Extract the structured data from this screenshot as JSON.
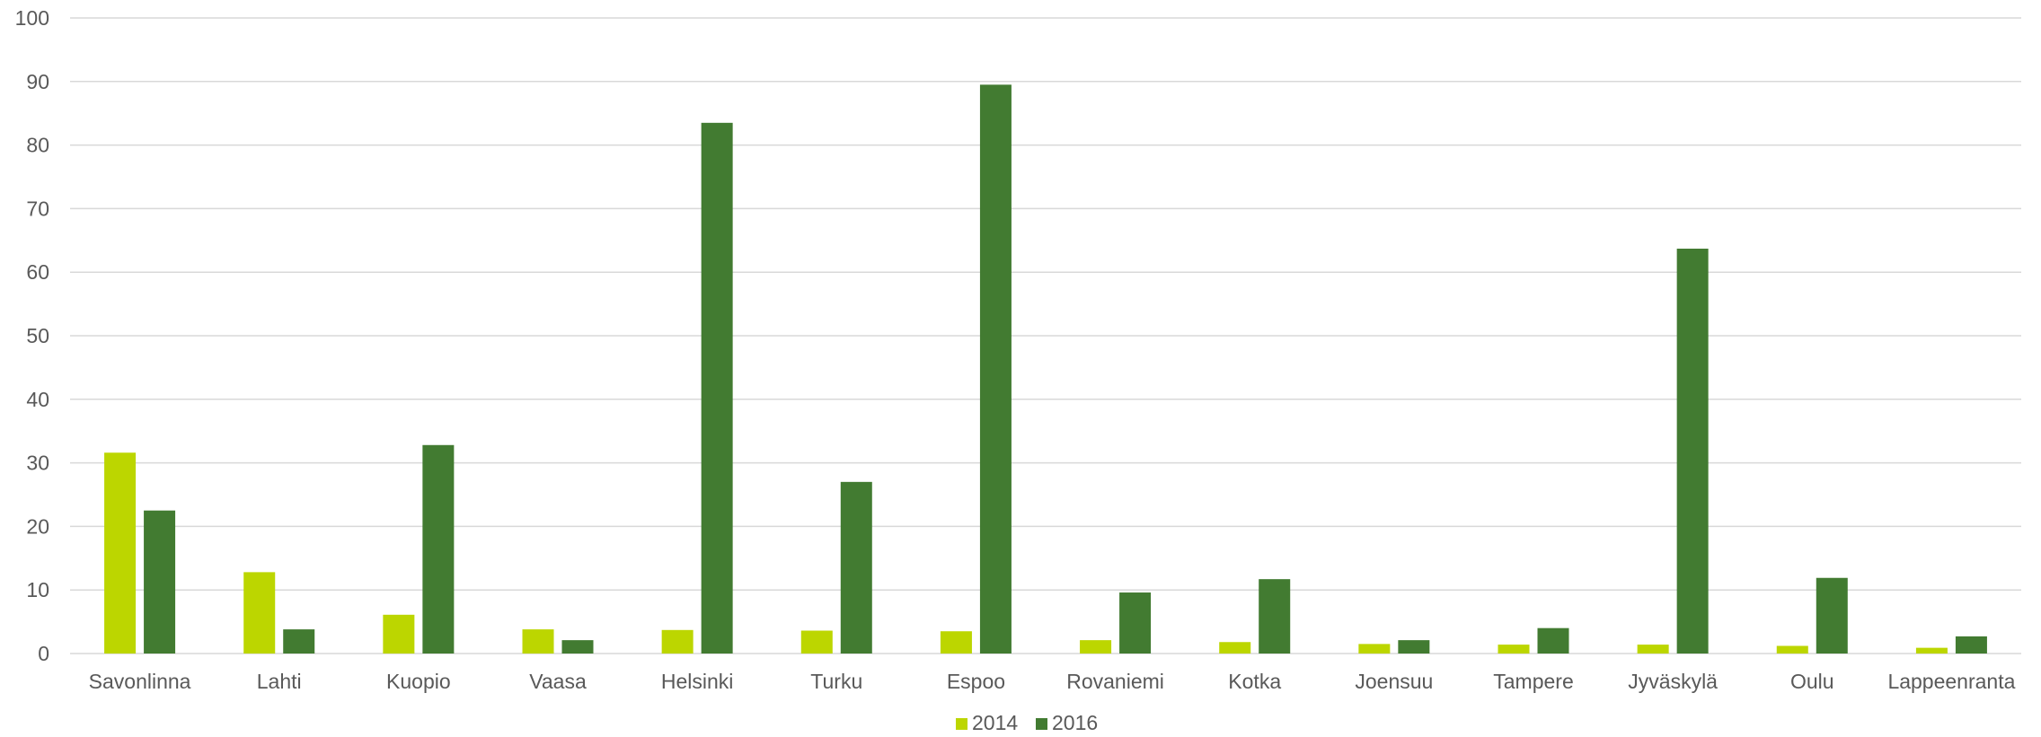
{
  "colors": {
    "series_2014": "#bcd600",
    "series_2016": "#427b31",
    "gridline": "#d9d9d9",
    "text": "#595959"
  },
  "chart_data": {
    "type": "bar",
    "title": "",
    "xlabel": "",
    "ylabel": "",
    "ylim": [
      0,
      100
    ],
    "yticks": [
      "0",
      "10",
      "20",
      "30",
      "40",
      "50",
      "60",
      "70",
      "80",
      "90",
      "100"
    ],
    "grid": true,
    "legend_position": "bottom",
    "categories": [
      "Savonlinna",
      "Lahti",
      "Kuopio",
      "Vaasa",
      "Helsinki",
      "Turku",
      "Espoo",
      "Rovaniemi",
      "Kotka",
      "Joensuu",
      "Tampere",
      "Jyväskylä",
      "Oulu",
      "Lappeenranta"
    ],
    "series": [
      {
        "name": "2014",
        "values": [
          31.6,
          12.8,
          6.1,
          3.8,
          3.7,
          3.6,
          3.5,
          2.1,
          1.8,
          1.5,
          1.4,
          1.4,
          1.2,
          0.9
        ]
      },
      {
        "name": "2016",
        "values": [
          22.5,
          3.8,
          32.8,
          2.1,
          83.5,
          27.0,
          89.5,
          9.6,
          11.7,
          2.1,
          4.0,
          63.7,
          11.9,
          2.7
        ]
      }
    ]
  }
}
